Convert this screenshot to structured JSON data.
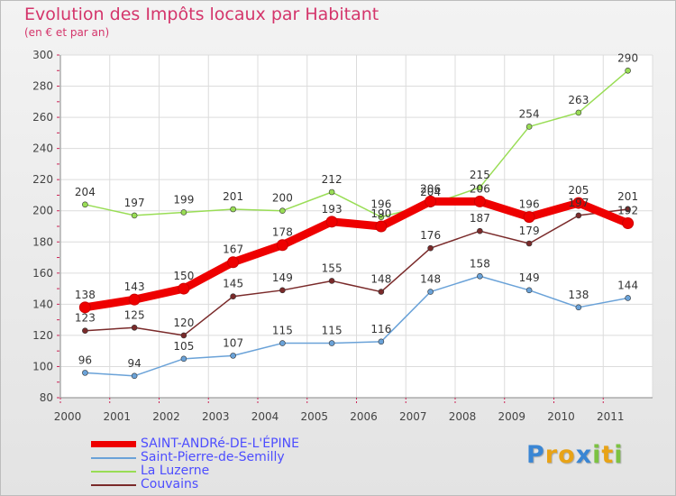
{
  "header": {
    "title": "Evolution des Impôts locaux par Habitant",
    "subtitle": "(en € et par an)"
  },
  "brand": {
    "text": "Proxiti",
    "letters": [
      "P",
      "r",
      "o",
      "x",
      "i",
      "t",
      "i"
    ]
  },
  "chart_data": {
    "type": "line",
    "x": [
      "2000",
      "2001",
      "2002",
      "2003",
      "2004",
      "2005",
      "2006",
      "2007",
      "2008",
      "2009",
      "2010",
      "2011"
    ],
    "ylim": [
      80,
      300
    ],
    "yticks": [
      80,
      100,
      120,
      140,
      160,
      180,
      200,
      220,
      240,
      260,
      280,
      300
    ],
    "grid": true,
    "legend_position": "bottom-left",
    "series": [
      {
        "name": "SAINT-ANDRé-DE-L'ÉPINE",
        "color": "#ee0000",
        "values": [
          138,
          143,
          150,
          167,
          178,
          193,
          190,
          206,
          206,
          196,
          205,
          192
        ],
        "point_labels": [
          "138",
          "143",
          "150",
          "167",
          "178",
          "193",
          "190",
          "206",
          "206",
          "196",
          "205",
          "192"
        ]
      },
      {
        "name": "Saint-Pierre-de-Semilly",
        "color": "#6aa2d8",
        "values": [
          96,
          94,
          105,
          107,
          115,
          115,
          116,
          148,
          158,
          149,
          138,
          144
        ],
        "point_labels": [
          "96",
          "94",
          "105",
          "107",
          "115",
          "115",
          "116",
          "148",
          "158",
          "149",
          "138",
          "144"
        ]
      },
      {
        "name": "La Luzerne",
        "color": "#99dd55",
        "values": [
          204,
          197,
          199,
          201,
          200,
          212,
          196,
          204,
          215,
          254,
          263,
          290
        ],
        "point_labels": [
          "204",
          "197",
          "199",
          "201",
          "200",
          "212",
          "196",
          "204",
          "215",
          "254",
          "263",
          "290"
        ]
      },
      {
        "name": "Couvains",
        "color": "#7a2a2a",
        "values": [
          123,
          125,
          120,
          145,
          149,
          155,
          148,
          176,
          187,
          179,
          197,
          201
        ],
        "point_labels": [
          "123",
          "125",
          "120",
          "145",
          "149",
          "155",
          "148",
          "176",
          "187",
          "179",
          "197",
          "201"
        ]
      }
    ]
  }
}
